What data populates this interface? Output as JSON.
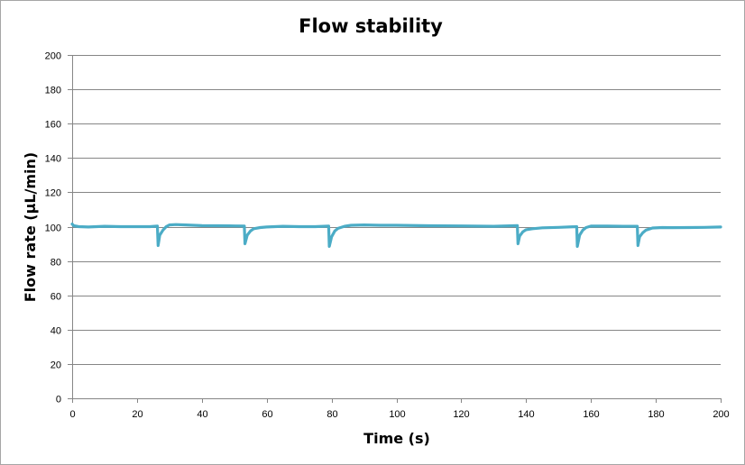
{
  "chart_data": {
    "type": "line",
    "title": "Flow stability",
    "xlabel": "Time (s)",
    "ylabel": "Flow rate (µL/min)",
    "xlim": [
      0,
      200
    ],
    "ylim": [
      0,
      200
    ],
    "xticks": [
      0,
      20,
      40,
      60,
      80,
      100,
      120,
      140,
      160,
      180,
      200
    ],
    "yticks": [
      0,
      20,
      40,
      60,
      80,
      100,
      120,
      140,
      160,
      180,
      200
    ],
    "grid": "horizontal",
    "legend": "none",
    "colors": {
      "line": "#4bacc6",
      "grid": "#868686",
      "axis": "#868686"
    },
    "baseline": 100,
    "dips": [
      {
        "t": 26.5,
        "min": 89,
        "before": 100
      },
      {
        "t": 53.3,
        "min": 90,
        "before": 100
      },
      {
        "t": 79.3,
        "min": 88.5,
        "before": 100
      },
      {
        "t": 137.5,
        "min": 90,
        "before": 100
      },
      {
        "t": 155.8,
        "min": 88.5,
        "before": 100
      },
      {
        "t": 174.5,
        "min": 89,
        "before": 100
      }
    ],
    "series": [
      {
        "x": [
          0,
          0.5,
          2,
          5,
          10,
          15,
          20,
          24,
          26.3,
          26.5,
          27,
          28,
          29,
          30,
          32,
          35,
          40,
          45,
          50,
          53.1,
          53.3,
          54,
          55,
          56,
          58,
          60,
          65,
          70,
          75,
          79.1,
          79.3,
          80,
          81,
          82,
          84,
          86,
          90,
          95,
          100,
          110,
          120,
          130,
          137.3,
          137.5,
          138,
          139,
          140,
          142,
          145,
          150,
          155.6,
          155.8,
          156.5,
          157.5,
          158.5,
          160,
          165,
          170,
          174.3,
          174.5,
          175,
          176,
          177,
          179,
          182,
          185,
          190,
          195,
          200
        ],
        "y": [
          101.5,
          100.5,
          100,
          99.8,
          100.2,
          100,
          100,
          100,
          100.3,
          89,
          95,
          98,
          100,
          101,
          101.2,
          101,
          100.6,
          100.5,
          100.4,
          100.3,
          90,
          95,
          97.5,
          98.8,
          99.5,
          99.8,
          100.2,
          100,
          100,
          100.3,
          88.5,
          94,
          97.5,
          99,
          100.2,
          100.8,
          101,
          100.8,
          100.8,
          100.5,
          100.4,
          100.2,
          100.6,
          90,
          94.5,
          97,
          98.2,
          98.8,
          99.3,
          99.6,
          100,
          88.5,
          95,
          98,
          99.5,
          100.3,
          100.3,
          100.2,
          100.2,
          89,
          94,
          96.5,
          98,
          99.2,
          99.5,
          99.4,
          99.5,
          99.6,
          99.8
        ]
      }
    ]
  }
}
